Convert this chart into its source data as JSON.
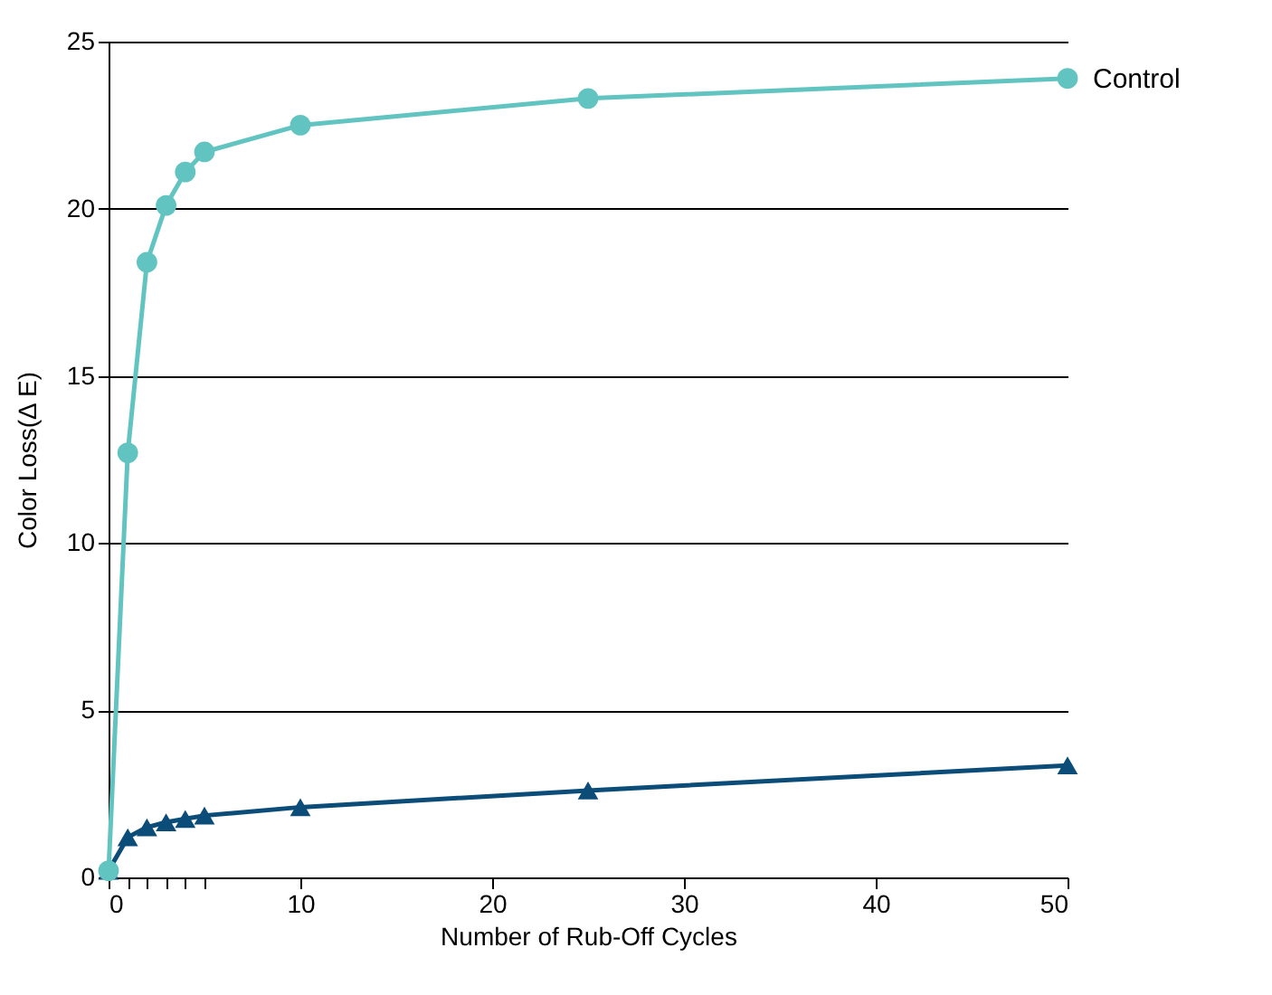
{
  "chart_data": {
    "type": "line",
    "xlabel": "Number of Rub-Off Cycles",
    "ylabel": "Color Loss(Δ E)",
    "xlim": [
      0,
      50
    ],
    "xticks": [
      0,
      {
        "value": 1,
        "label": null
      },
      {
        "value": 2,
        "label": null
      },
      {
        "value": 3,
        "label": null
      },
      {
        "value": 4,
        "label": null
      },
      {
        "value": 5,
        "label": null
      },
      10,
      20,
      30,
      40,
      50
    ],
    "ylim": [
      0,
      25
    ],
    "yticks": [
      0,
      5,
      10,
      15,
      20,
      25
    ],
    "grid": "y",
    "series": [
      {
        "name": "Control",
        "color": "#62c4c0",
        "marker": "circle",
        "x": [
          0,
          1,
          2,
          3,
          4,
          5,
          10,
          25,
          50
        ],
        "values": [
          0.2,
          12.7,
          18.4,
          20.1,
          21.1,
          21.7,
          22.5,
          23.3,
          23.9
        ]
      },
      {
        "color": "#0b4d78",
        "marker": "triangle",
        "x": [
          0,
          1,
          2,
          3,
          4,
          5,
          10,
          25,
          50
        ],
        "values": [
          0.2,
          1.2,
          1.5,
          1.65,
          1.75,
          1.85,
          2.1,
          2.6,
          3.35
        ]
      }
    ]
  }
}
